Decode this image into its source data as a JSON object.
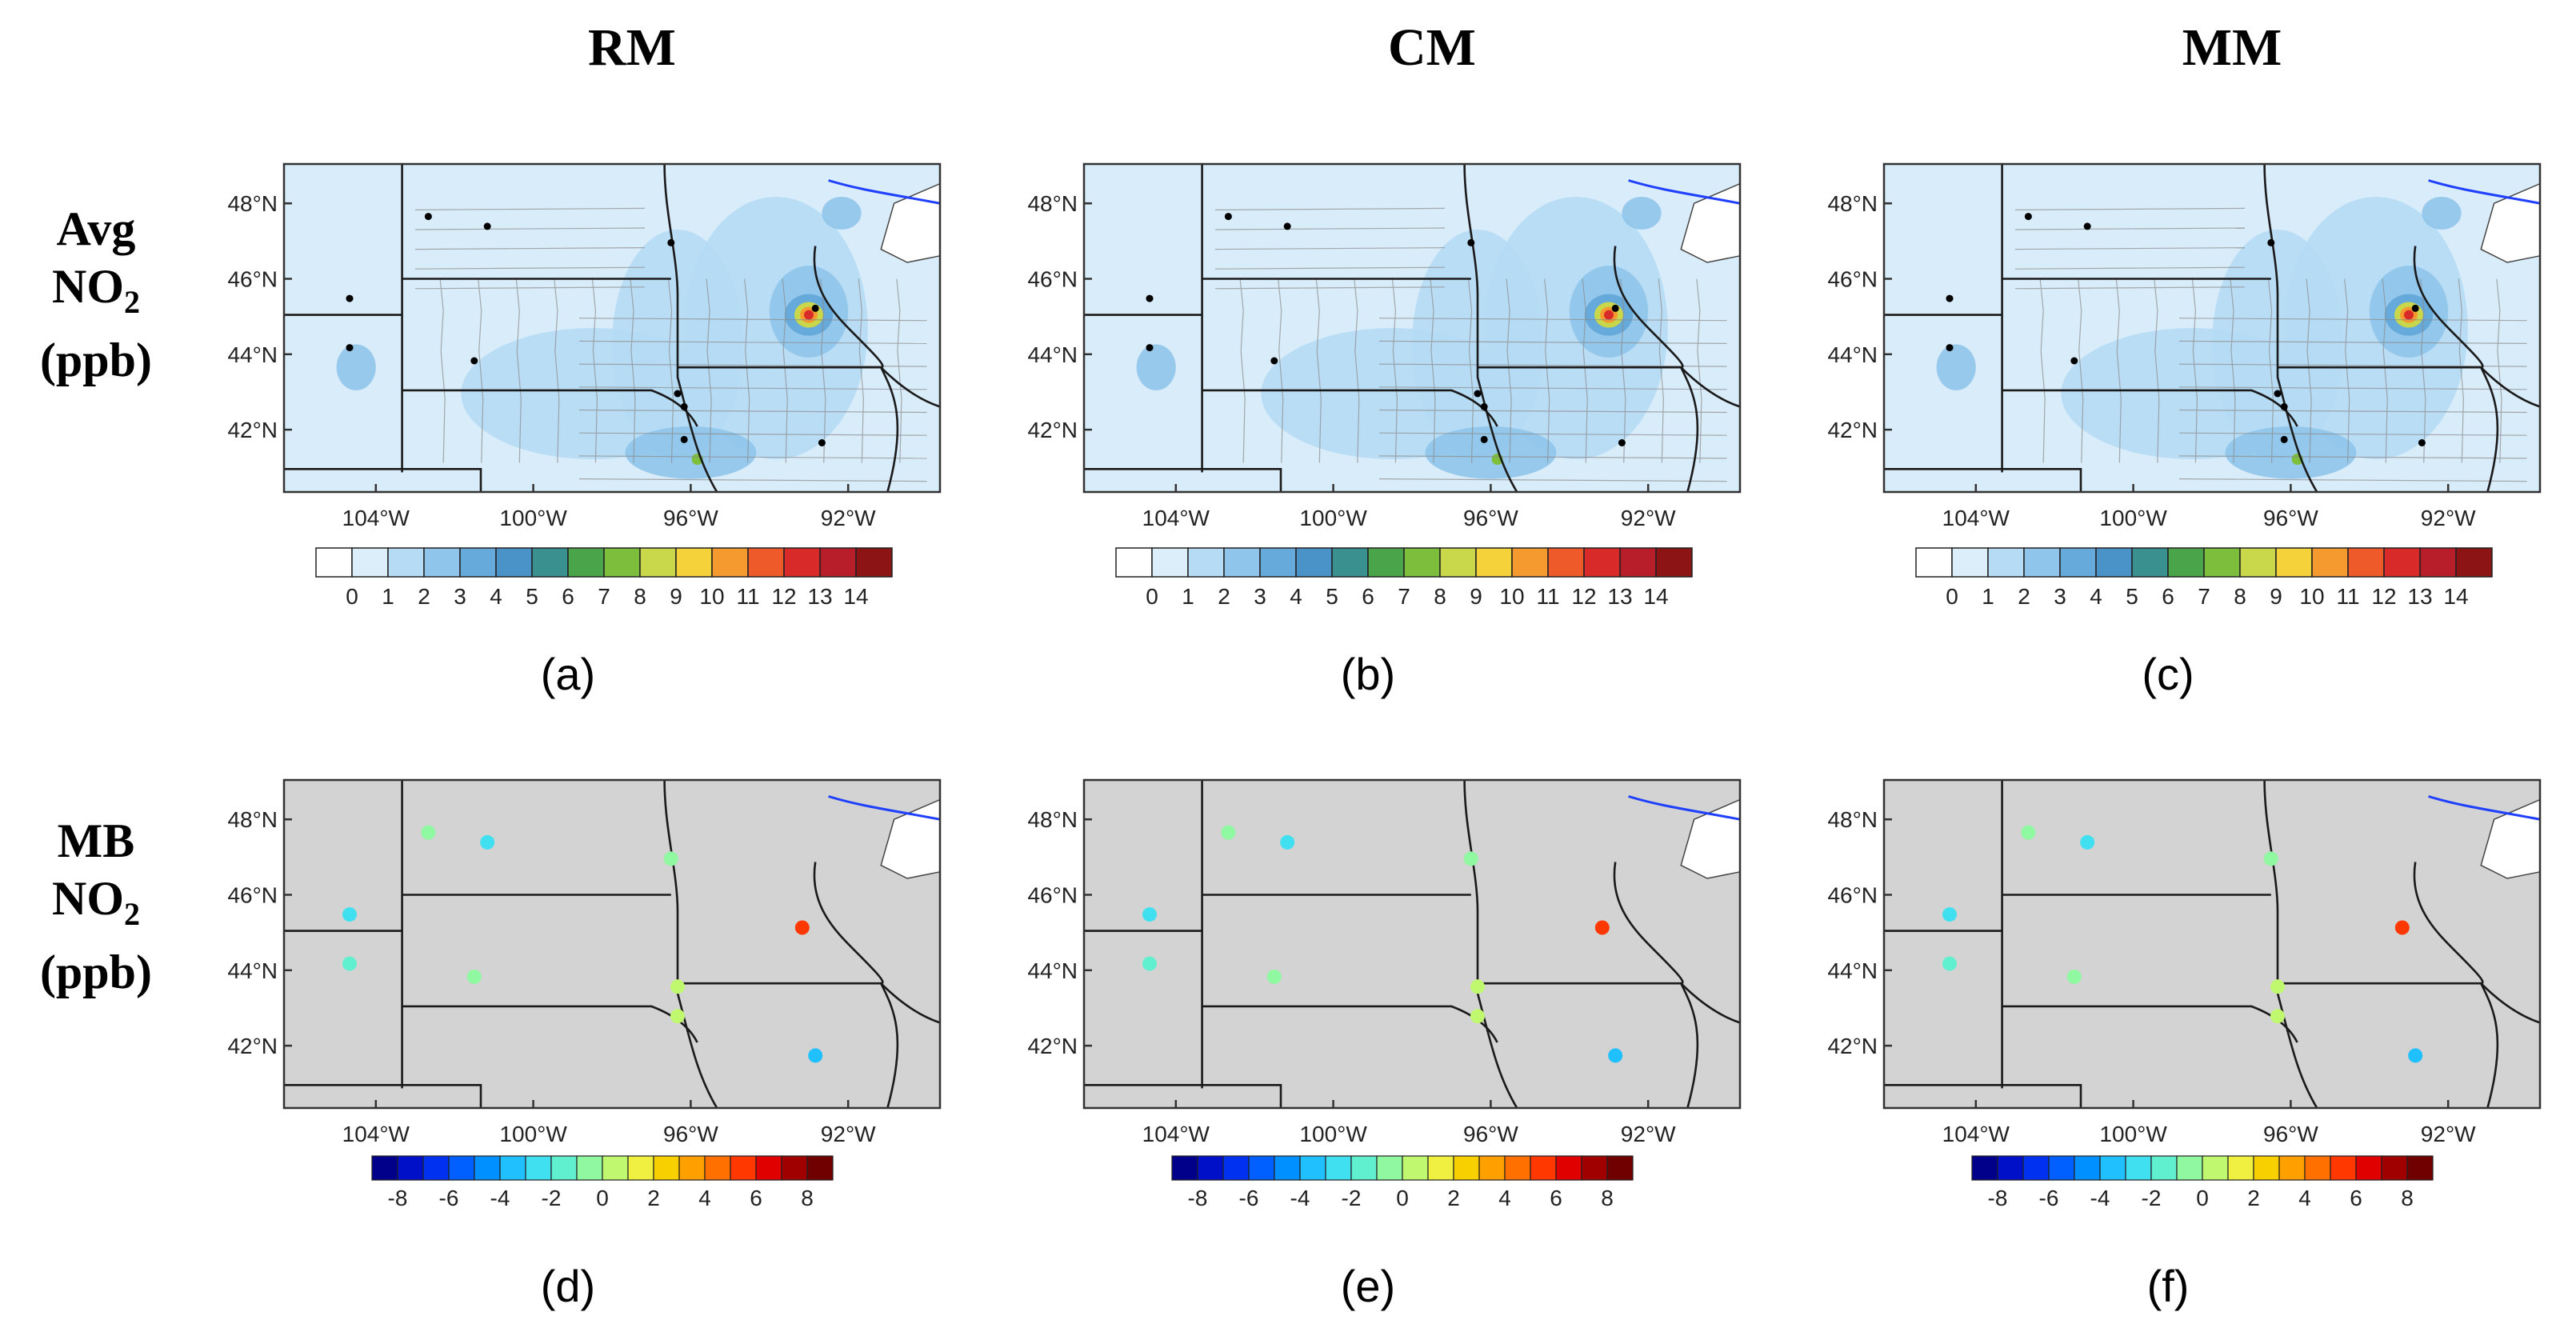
{
  "column_titles": [
    "RM",
    "CM",
    "MM"
  ],
  "row_labels": {
    "avg": {
      "line1": "Avg",
      "line2": "NO",
      "sub": "2",
      "line3": "(ppb)"
    },
    "mb": {
      "line1": "MB",
      "line2": "NO",
      "sub": "2",
      "line3": "(ppb)"
    }
  },
  "lat_labels": [
    "48°N",
    "46°N",
    "44°N",
    "42°N"
  ],
  "lon_labels": [
    "104°W",
    "100°W",
    "96°W",
    "92°W"
  ],
  "avg_colorbar": {
    "labels": [
      "0",
      "1",
      "2",
      "3",
      "4",
      "5",
      "6",
      "7",
      "8",
      "9",
      "10",
      "11",
      "12",
      "13",
      "14"
    ],
    "colors": [
      "#ffffff",
      "#dbeefa",
      "#b6dcf5",
      "#8fc5eb",
      "#66a9db",
      "#4a93c8",
      "#3a8f8f",
      "#4aa54a",
      "#7dbf3c",
      "#c8d84a",
      "#f5d23a",
      "#f59a2e",
      "#ef5a2a",
      "#d92a2a",
      "#b81e2a",
      "#8c1414"
    ]
  },
  "mb_colorbar": {
    "labels": [
      "-8",
      "-6",
      "-4",
      "-2",
      "0",
      "2",
      "4",
      "6",
      "8"
    ],
    "colors": [
      "#00008b",
      "#0010c8",
      "#0030f0",
      "#0060ff",
      "#0090ff",
      "#20c0ff",
      "#40e0f0",
      "#60f0d0",
      "#90f8a0",
      "#c0f870",
      "#f0f040",
      "#f8d000",
      "#ffa000",
      "#ff7000",
      "#ff3800",
      "#e00000",
      "#a00000",
      "#700000"
    ]
  },
  "captions": [
    "(a)",
    "(b)",
    "(c)",
    "(d)",
    "(e)",
    "(f)"
  ],
  "colors": {
    "site_avg": "#000000",
    "map_bg_avg": "#d9ecfa",
    "map_bg_mb": "#d3d3d3",
    "water": "#ffffff",
    "lake_line": "#1f3fff"
  }
}
